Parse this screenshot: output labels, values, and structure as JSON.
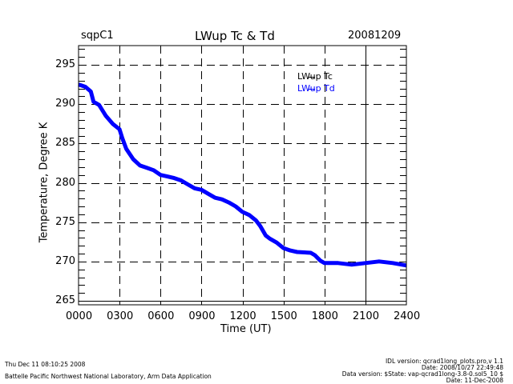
{
  "header": {
    "site": "sqpC1",
    "date": "20081209"
  },
  "footer": {
    "left": [
      "Thu Dec 11 08:10:25 2008",
      "Battelle Pacific Northwest National Laboratory, Arm Data Application"
    ],
    "right": [
      "IDL version: qcrad1long_plots.pro,v 1.1",
      "Date: 2008/10/27 22:49:48",
      "Data version: $State: vap-qcrad1long-3.8-0.sol5_10 $",
      "Date: 11-Dec-2008"
    ]
  },
  "colors": {
    "Tc": "#000000",
    "Td": "#0000ff"
  },
  "chart_data": {
    "type": "line",
    "title": "LWup Tc & Td",
    "xlabel": "Time (UT)",
    "ylabel": "Temperature, Degree K",
    "xlim": [
      0,
      24
    ],
    "ylim": [
      264.5,
      297.5
    ],
    "grid": true,
    "legend": "top-right",
    "x_ticks": [
      0,
      3,
      6,
      9,
      12,
      15,
      18,
      21,
      24
    ],
    "x_tick_labels": [
      "0000",
      "0300",
      "0600",
      "0900",
      "1200",
      "1500",
      "1800",
      "2100",
      "2400"
    ],
    "y_ticks": [
      265,
      270,
      275,
      280,
      285,
      290,
      295
    ],
    "y_tick_labels": [
      "265",
      "270",
      "275",
      "280",
      "285",
      "290",
      "295"
    ],
    "series": [
      {
        "name": "LWup Tc",
        "color": "#000000",
        "x": [
          0.0,
          0.5,
          0.9,
          1.1,
          1.5,
          2.0,
          2.5,
          3.0,
          3.2,
          3.5,
          4.0,
          4.5,
          5.0,
          5.5,
          6.0,
          6.5,
          7.0,
          7.5,
          8.0,
          8.5,
          9.0,
          9.5,
          10.0,
          10.5,
          11.0,
          11.5,
          12.0,
          12.5,
          13.0,
          13.3,
          13.7,
          14.0,
          14.5,
          15.0,
          15.5,
          16.0,
          17.0,
          17.3,
          17.7,
          18.0,
          19.0,
          20.0,
          21.0,
          22.0,
          23.0,
          24.0
        ],
        "y": [
          292.5,
          292.2,
          291.6,
          290.3,
          289.9,
          288.5,
          287.5,
          286.8,
          285.7,
          284.3,
          283.0,
          282.2,
          281.9,
          281.6,
          281.0,
          280.8,
          280.6,
          280.3,
          279.8,
          279.3,
          279.1,
          278.6,
          278.1,
          277.9,
          277.5,
          277.0,
          276.3,
          275.9,
          275.2,
          274.5,
          273.3,
          272.9,
          272.4,
          271.7,
          271.4,
          271.2,
          271.1,
          270.8,
          270.1,
          269.8,
          269.8,
          269.6,
          269.8,
          270.0,
          269.8,
          269.5
        ]
      },
      {
        "name": "LWup Td",
        "color": "#0000ff",
        "x": [
          0.0,
          0.5,
          0.9,
          1.1,
          1.5,
          2.0,
          2.5,
          3.0,
          3.2,
          3.5,
          4.0,
          4.5,
          5.0,
          5.5,
          6.0,
          6.5,
          7.0,
          7.5,
          8.0,
          8.5,
          9.0,
          9.5,
          10.0,
          10.5,
          11.0,
          11.5,
          12.0,
          12.5,
          13.0,
          13.3,
          13.7,
          14.0,
          14.5,
          15.0,
          15.5,
          16.0,
          17.0,
          17.3,
          17.7,
          18.0,
          19.0,
          20.0,
          21.0,
          22.0,
          23.0,
          24.0
        ],
        "y": [
          292.5,
          292.2,
          291.6,
          290.3,
          289.9,
          288.5,
          287.5,
          286.8,
          285.7,
          284.3,
          283.0,
          282.2,
          281.9,
          281.6,
          281.0,
          280.8,
          280.6,
          280.3,
          279.8,
          279.3,
          279.1,
          278.6,
          278.1,
          277.9,
          277.5,
          277.0,
          276.3,
          275.9,
          275.2,
          274.5,
          273.3,
          272.9,
          272.4,
          271.7,
          271.4,
          271.2,
          271.1,
          270.8,
          270.1,
          269.8,
          269.8,
          269.6,
          269.8,
          270.0,
          269.8,
          269.5
        ]
      }
    ]
  }
}
